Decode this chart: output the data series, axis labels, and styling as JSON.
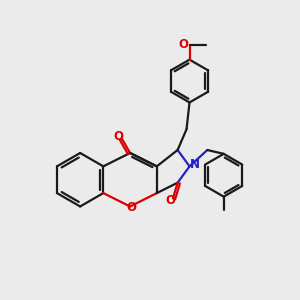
{
  "background_color": "#ebebeb",
  "bond_color": "#1a1a1a",
  "oxygen_color": "#dd0000",
  "nitrogen_color": "#2222cc",
  "bond_width": 1.6,
  "figsize": [
    3.0,
    3.0
  ],
  "dpi": 100,
  "xlim": [
    0,
    10
  ],
  "ylim": [
    0,
    10
  ]
}
